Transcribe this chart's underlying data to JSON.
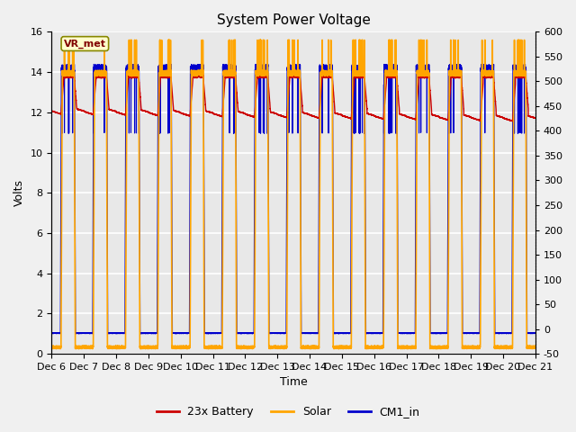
{
  "title": "System Power Voltage",
  "xlabel": "Time",
  "ylabel": "Volts",
  "xlim": [
    0,
    15
  ],
  "ylim_left": [
    0,
    16
  ],
  "ylim_right": [
    -50,
    600
  ],
  "yticks_left": [
    0,
    2,
    4,
    6,
    8,
    10,
    12,
    14,
    16
  ],
  "yticks_right": [
    -50,
    0,
    50,
    100,
    150,
    200,
    250,
    300,
    350,
    400,
    450,
    500,
    550,
    600
  ],
  "xtick_labels": [
    "Dec 6",
    "Dec 7",
    "Dec 8",
    "Dec 9",
    "Dec 10",
    "Dec 11",
    "Dec 12",
    "Dec 13",
    "Dec 14",
    "Dec 15",
    "Dec 16",
    "Dec 17",
    "Dec 18",
    "Dec 19",
    "Dec 20",
    "Dec 21"
  ],
  "plot_bg": "#e8e8e8",
  "fig_bg": "#f0f0f0",
  "grid_color": "#ffffff",
  "vr_met_label": "VR_met",
  "legend_labels": [
    "23x Battery",
    "Solar",
    "CM1_in"
  ],
  "legend_colors": [
    "#cc0000",
    "#ffa500",
    "#0000cc"
  ],
  "title_fontsize": 11,
  "label_fontsize": 9,
  "tick_fontsize": 8
}
